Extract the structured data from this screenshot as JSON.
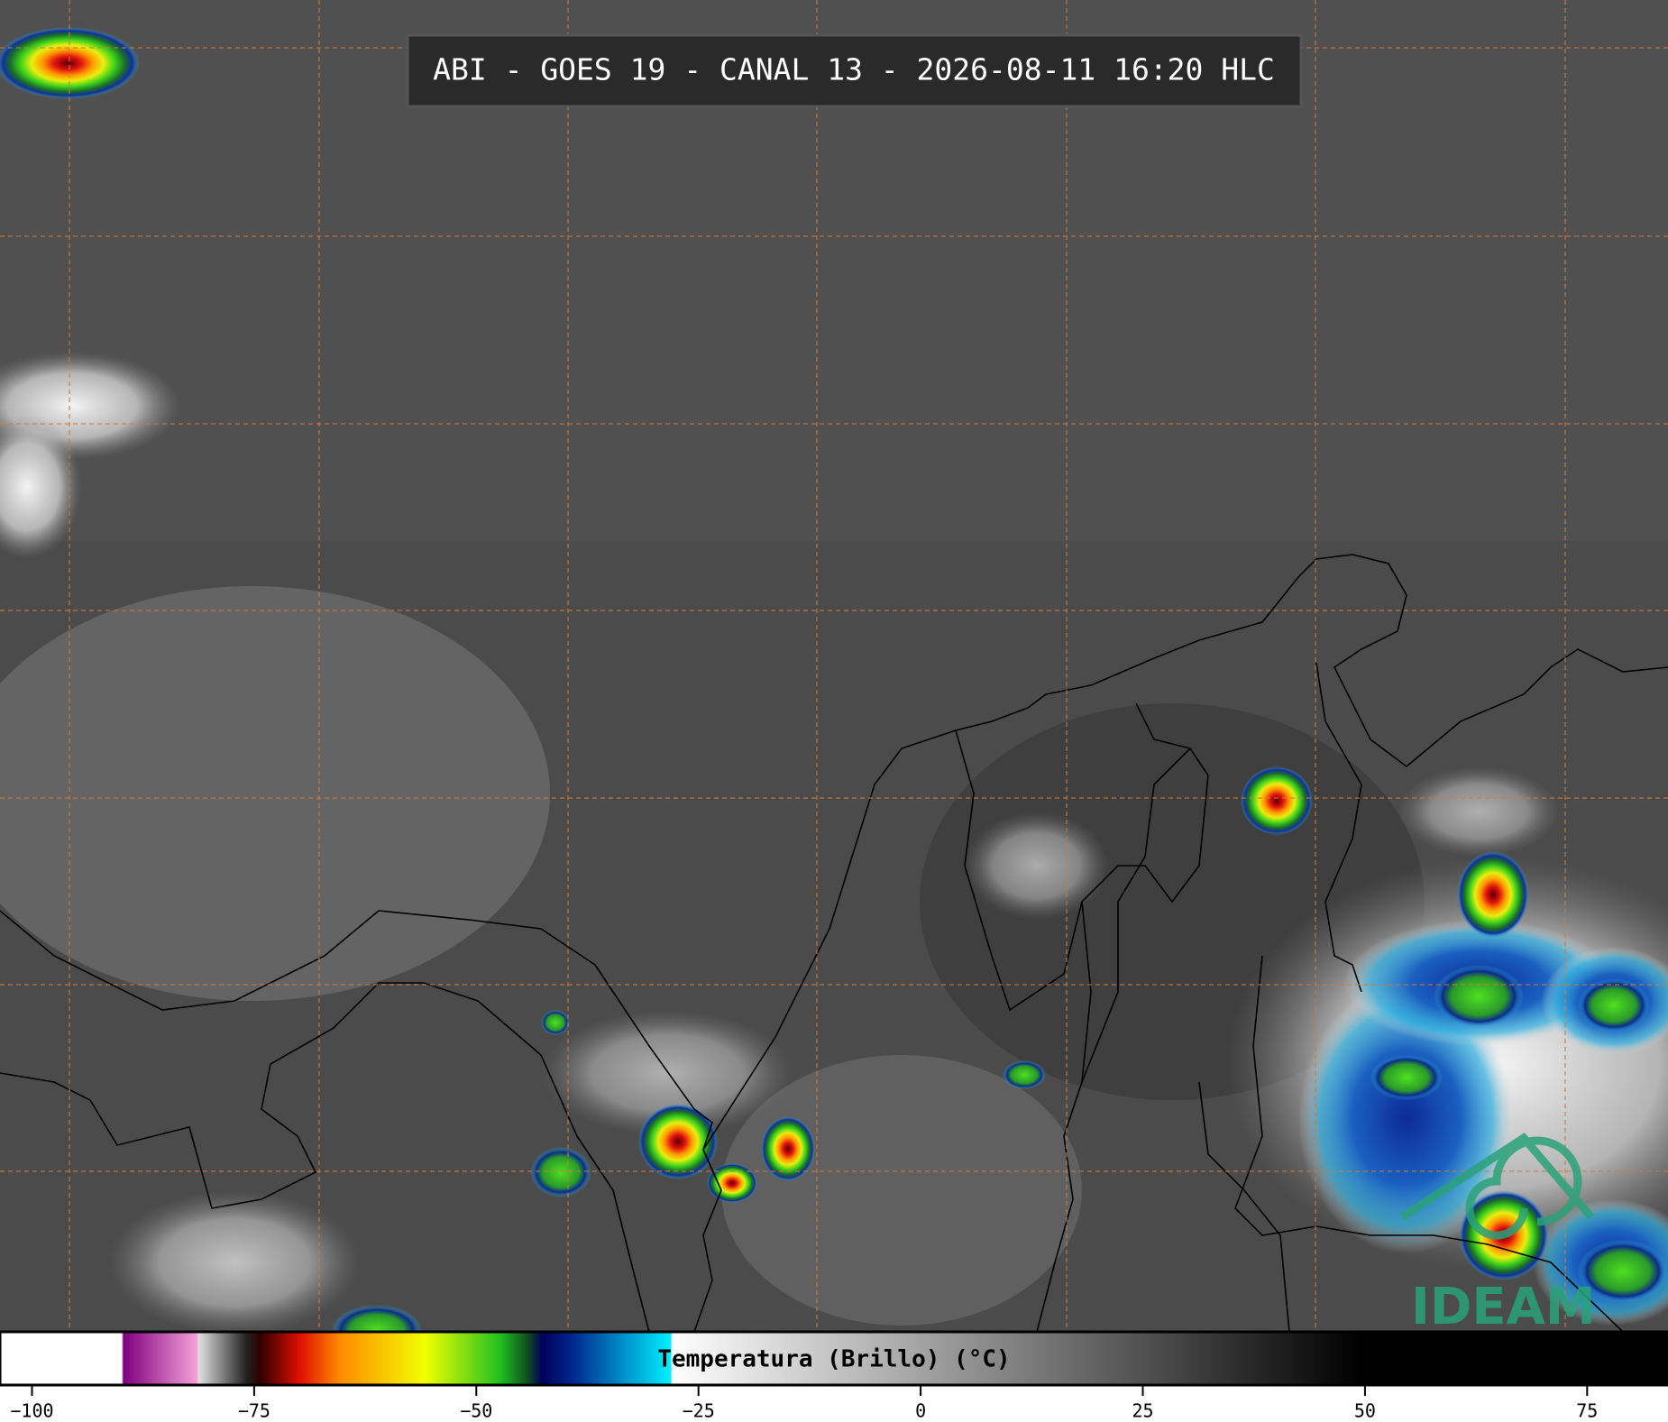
{
  "title": "ABI - GOES 19 - CANAL 13 - 2026-08-11 16:20 HLC",
  "colorbar": {
    "label": "Temperatura (Brillo) (°C)",
    "lim": [
      -103.6,
      84.1
    ],
    "ticks": [
      {
        "value": -100,
        "label": "−100"
      },
      {
        "value": -75,
        "label": "−75"
      },
      {
        "value": -50,
        "label": "−50"
      },
      {
        "value": -25,
        "label": "−25"
      },
      0,
      25,
      50,
      75
    ]
  },
  "logo": "IDEAM"
}
